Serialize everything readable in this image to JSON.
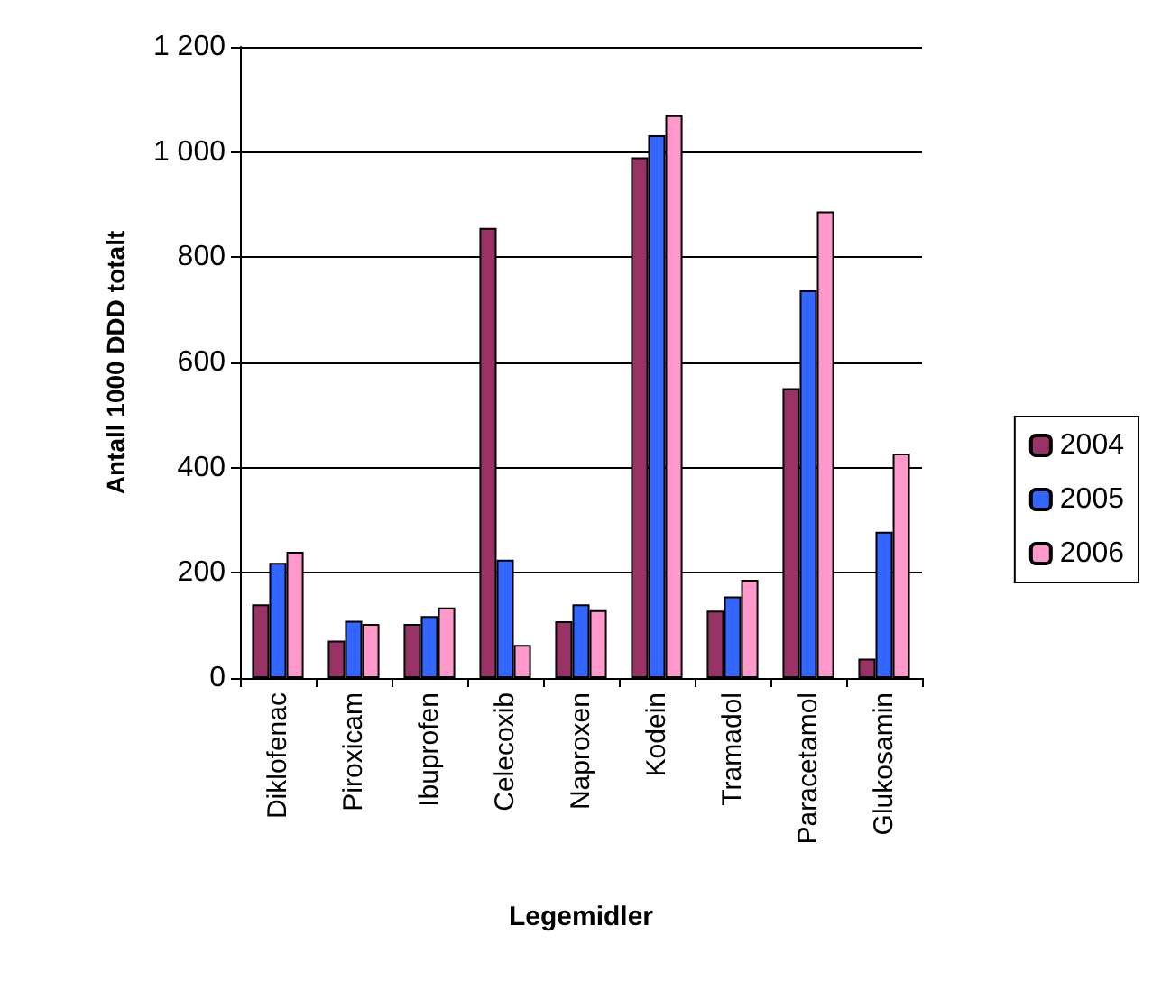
{
  "chart_data": {
    "type": "bar",
    "xlabel": "Legemidler",
    "ylabel": "Antall 1000 DDD totalt",
    "categories": [
      "Diklofenac",
      "Piroxicam",
      "Ibuprofen",
      "Celecoxib",
      "Naproxen",
      "Kodein",
      "Tramadol",
      "Paracetamol",
      "Glukosamin"
    ],
    "series": [
      {
        "name": "2004",
        "color": "#993366",
        "values": [
          140,
          71,
          103,
          856,
          108,
          990,
          128,
          551,
          37
        ]
      },
      {
        "name": "2005",
        "color": "#3366ff",
        "values": [
          219,
          109,
          118,
          225,
          140,
          1032,
          155,
          737,
          278
        ]
      },
      {
        "name": "2006",
        "color": "#ff99cc",
        "values": [
          240,
          103,
          134,
          63,
          129,
          1070,
          187,
          887,
          427
        ]
      }
    ],
    "ylim": [
      0,
      1200
    ],
    "yticks": [
      0,
      200,
      400,
      600,
      800,
      {
        "value": 1000,
        "label": "1 000"
      },
      {
        "value": 1200,
        "label": "1 200"
      }
    ],
    "grid": "y",
    "legend": "right"
  }
}
